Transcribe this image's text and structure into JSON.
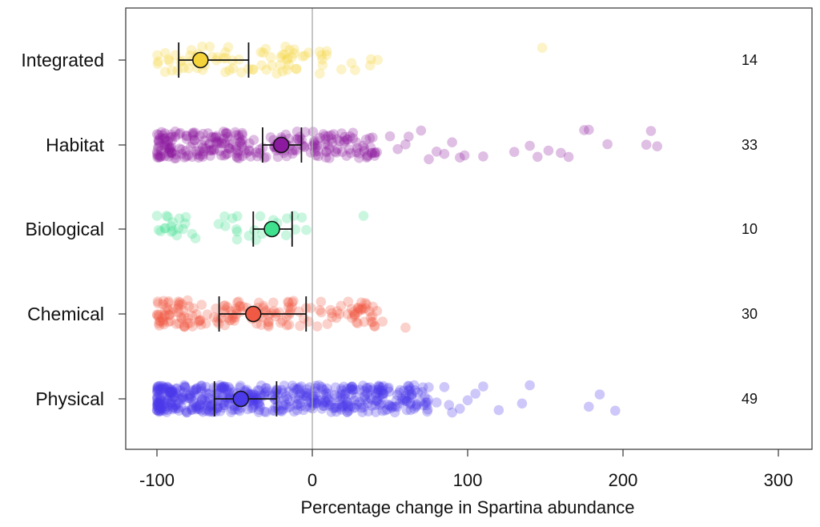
{
  "chart_data": {
    "type": "scatter",
    "title": "",
    "xlabel": "Percentage change in Spartina abundance",
    "ylabel": "",
    "xlim": [
      -120,
      310
    ],
    "xticks": [
      -100,
      0,
      100,
      200,
      300
    ],
    "xtick_labels": [
      "-100",
      "0",
      "100",
      "200",
      "300"
    ],
    "reference_line_x": 0,
    "grid": false,
    "legend": "none",
    "categories": [
      "Integrated",
      "Habitat",
      "Biological",
      "Chemical",
      "Physical"
    ],
    "counts": [
      "14",
      "33",
      "10",
      "30",
      "49"
    ],
    "series": [
      {
        "category": "Integrated",
        "color": "#f5d33a",
        "mean": -72,
        "ci": [
          -86,
          -41
        ],
        "n_points": 80,
        "range": [
          -100,
          43
        ],
        "outliers": [
          148
        ]
      },
      {
        "category": "Habitat",
        "color": "#8b1a9e",
        "mean": -20,
        "ci": [
          -32,
          -7
        ],
        "n_points": 260,
        "range": [
          -100,
          42
        ],
        "outliers": [
          50,
          55,
          60,
          62,
          70,
          75,
          80,
          85,
          90,
          95,
          98,
          110,
          130,
          140,
          145,
          152,
          160,
          165,
          175,
          178,
          190,
          215,
          218,
          222
        ]
      },
      {
        "category": "Biological",
        "color": "#3fe08e",
        "mean": -26,
        "ci": [
          -38,
          -13
        ],
        "n_points": 40,
        "range": [
          -100,
          5
        ],
        "outliers": [
          33
        ]
      },
      {
        "category": "Chemical",
        "color": "#f05a45",
        "mean": -38,
        "ci": [
          -60,
          -4
        ],
        "n_points": 180,
        "range": [
          -100,
          46
        ],
        "outliers": [
          60
        ]
      },
      {
        "category": "Physical",
        "color": "#4b3aea",
        "mean": -46,
        "ci": [
          -63,
          -23
        ],
        "n_points": 520,
        "range": [
          -100,
          75
        ],
        "outliers": [
          80,
          85,
          88,
          90,
          95,
          100,
          105,
          110,
          120,
          135,
          140,
          178,
          185,
          195
        ]
      }
    ]
  }
}
